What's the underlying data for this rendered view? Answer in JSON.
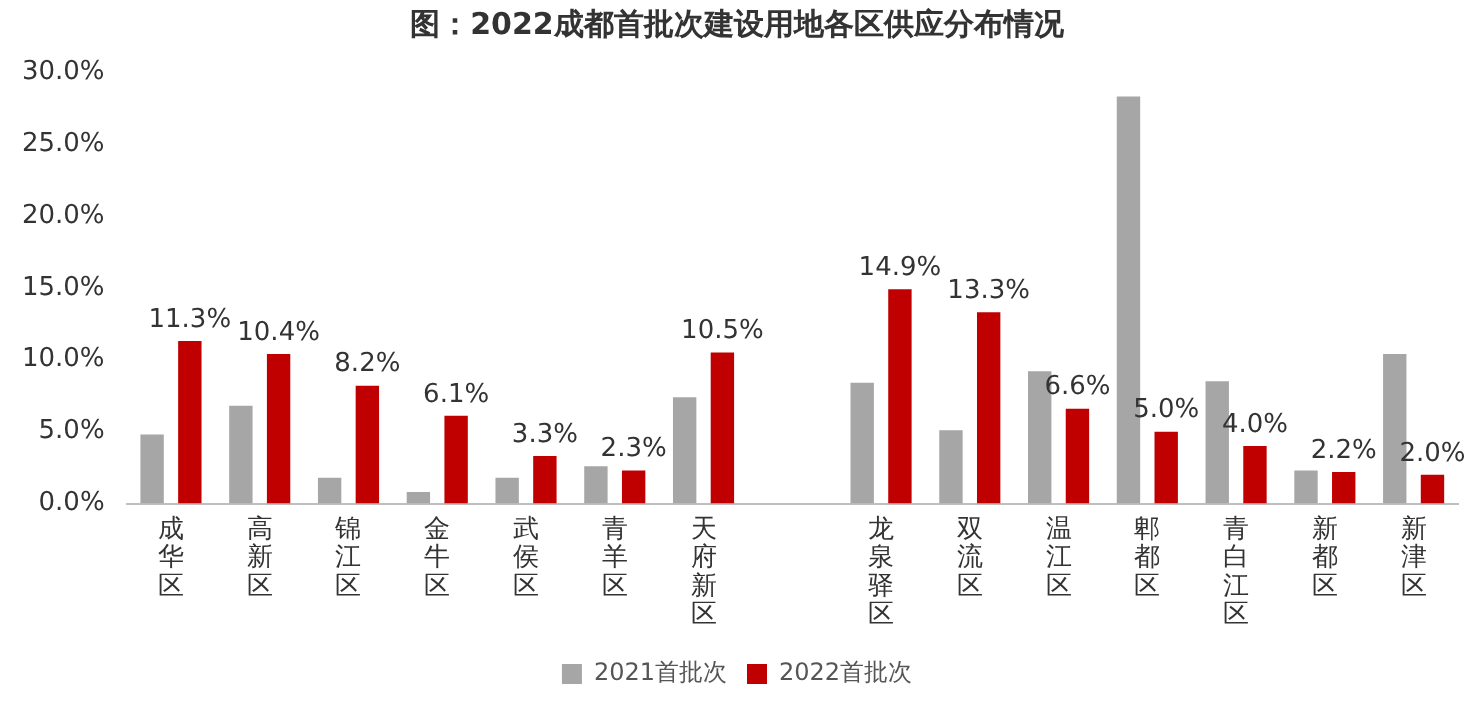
{
  "chart_data": {
    "type": "bar",
    "title": "图：2022成都首批次建设用地各区供应分布情况",
    "categories": [
      "成华区",
      "高新区",
      "锦江区",
      "金牛区",
      "武侯区",
      "青羊区",
      "天府新区",
      null,
      "龙泉驿区",
      "双流区",
      "温江区",
      "郫都区",
      "青白江区",
      "新都区",
      "新津区"
    ],
    "series": [
      {
        "name": "2021首批次",
        "color": "#a6a6a6",
        "values": [
          4.8,
          6.8,
          1.8,
          0.8,
          1.8,
          2.6,
          7.4,
          null,
          8.4,
          5.1,
          9.2,
          28.3,
          8.5,
          2.3,
          10.4
        ]
      },
      {
        "name": "2022首批次",
        "color": "#c00000",
        "values": [
          11.3,
          10.4,
          8.2,
          6.1,
          3.3,
          2.3,
          10.5,
          null,
          14.9,
          13.3,
          6.6,
          5.0,
          4.0,
          2.2,
          2.0
        ],
        "value_labels": [
          "11.3%",
          "10.4%",
          "8.2%",
          "6.1%",
          "3.3%",
          "2.3%",
          "10.5%",
          null,
          "14.9%",
          "13.3%",
          "6.6%",
          "5.0%",
          "4.0%",
          "2.2%",
          "2.0%"
        ]
      }
    ],
    "ylim": [
      0,
      30
    ],
    "yticks": [
      {
        "value": 0,
        "label": "0.0%"
      },
      {
        "value": 5,
        "label": "5.0%"
      },
      {
        "value": 10,
        "label": "10.0%"
      },
      {
        "value": 15,
        "label": "15.0%"
      },
      {
        "value": 20,
        "label": "20.0%"
      },
      {
        "value": 25,
        "label": "25.0%"
      },
      {
        "value": 30,
        "label": "30.0%"
      }
    ],
    "grid": false,
    "legend": "bottom"
  }
}
